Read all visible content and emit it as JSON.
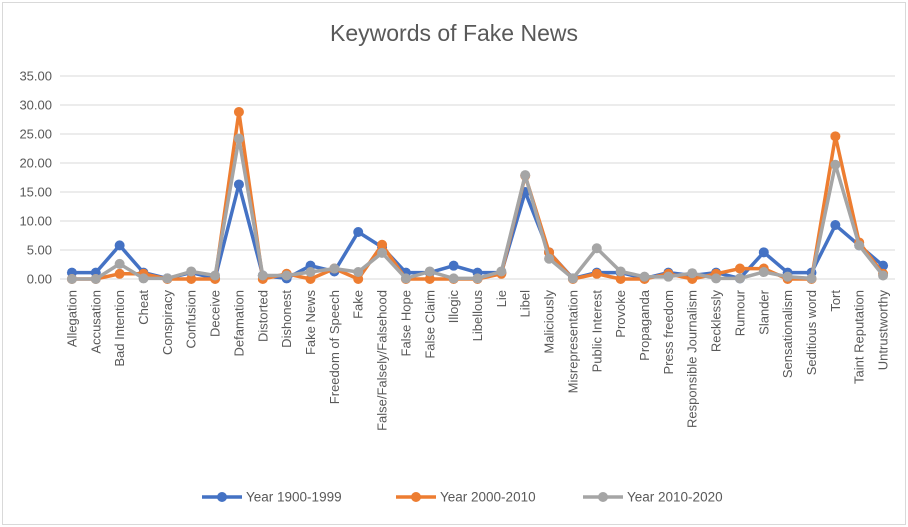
{
  "chart_data": {
    "type": "line",
    "title": "Keywords of Fake News",
    "xlabel": "",
    "ylabel": "",
    "ylim": [
      0,
      35
    ],
    "yticks": [
      "0.00",
      "5.00",
      "10.00",
      "15.00",
      "20.00",
      "25.00",
      "30.00",
      "35.00"
    ],
    "grid": true,
    "legend_position": "bottom",
    "categories": [
      "Allegation",
      "Accusation",
      "Bad Intention",
      "Cheat",
      "Conspiracy",
      "Confusion",
      "Deceive",
      "Defamation",
      "Distorted",
      "Dishonest",
      "Fake News",
      "Freedom of Speech",
      "Fake",
      "False/Falsely/Falsehood",
      "False Hope",
      "False Claim",
      "Illogic",
      "Libellous",
      "Lie",
      "Libel",
      "Maliciously",
      "Misrepresentation",
      "Public Interest",
      "Provoke",
      "Propaganda",
      "Press freedom",
      "Responsible Journalism",
      "Recklessly",
      "Rumour",
      "Slander",
      "Sensationalism",
      "Seditious word",
      "Tort",
      "Taint Reputation",
      "Untrustworthy"
    ],
    "series": [
      {
        "name": "Year 1900-1999",
        "color": "#4472C4",
        "values": [
          1.1,
          1.1,
          5.8,
          1.1,
          0.1,
          1.1,
          0.1,
          16.3,
          0.6,
          0.1,
          2.3,
          1.3,
          8.1,
          5.5,
          1.1,
          1.1,
          2.3,
          1.1,
          1.1,
          15.0,
          4.6,
          0.1,
          1.1,
          1.1,
          0.1,
          1.1,
          0.6,
          1.1,
          0.1,
          4.6,
          1.1,
          1.1,
          9.3,
          5.8,
          2.3
        ]
      },
      {
        "name": "Year 2000-2010",
        "color": "#ED7D31",
        "values": [
          0.0,
          0.0,
          0.9,
          0.9,
          0.0,
          0.0,
          0.0,
          28.8,
          0.0,
          0.9,
          0.0,
          1.8,
          0.0,
          5.9,
          0.0,
          0.0,
          0.0,
          0.0,
          0.9,
          17.8,
          4.6,
          0.0,
          0.9,
          0.0,
          0.0,
          0.9,
          0.0,
          0.9,
          1.8,
          1.8,
          0.0,
          0.0,
          24.6,
          6.3,
          0.9
        ]
      },
      {
        "name": "Year 2010-2020",
        "color": "#A5A5A5",
        "values": [
          0.0,
          0.0,
          2.6,
          0.1,
          0.1,
          1.3,
          0.6,
          24.2,
          0.6,
          0.6,
          1.2,
          1.8,
          1.2,
          4.5,
          0.1,
          1.3,
          0.1,
          0.1,
          1.3,
          17.9,
          3.5,
          0.1,
          5.3,
          1.3,
          0.4,
          0.4,
          1.0,
          0.1,
          0.1,
          1.2,
          0.4,
          0.1,
          19.7,
          5.8,
          0.6
        ]
      }
    ]
  }
}
